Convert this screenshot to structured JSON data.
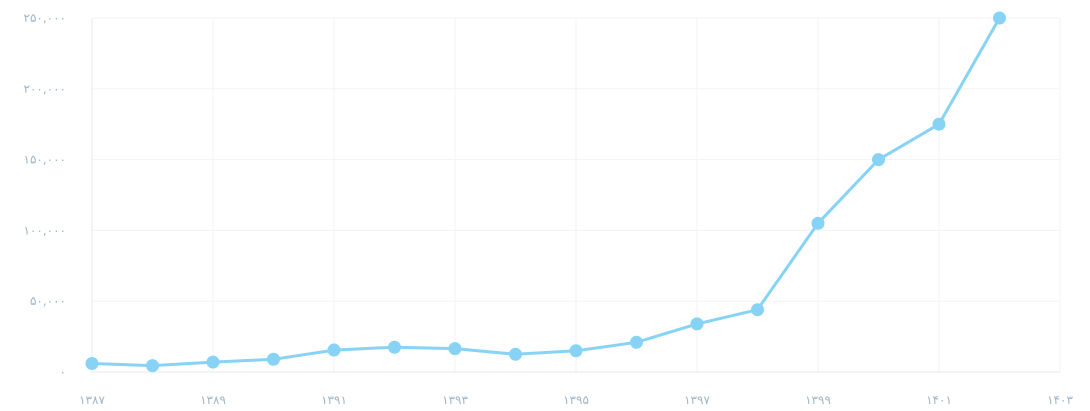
{
  "chart_data": {
    "type": "line",
    "title": "",
    "xlabel": "",
    "ylabel": "",
    "grid": true,
    "legend": "none",
    "x": [
      1387,
      1388,
      1389,
      1390,
      1391,
      1392,
      1393,
      1394,
      1395,
      1396,
      1397,
      1398,
      1399,
      1400,
      1401,
      1402
    ],
    "xlim": [
      1387,
      1403
    ],
    "ylim": [
      0,
      250000
    ],
    "x_ticks": [
      "۱۳۸۷",
      "۱۳۸۹",
      "۱۳۹۱",
      "۱۳۹۳",
      "۱۳۹۵",
      "۱۳۹۷",
      "۱۳۹۹",
      "۱۴۰۱",
      "۱۴۰۳"
    ],
    "y_ticks": [
      "۰",
      "۵۰,۰۰۰",
      "۱۰۰,۰۰۰",
      "۱۵۰,۰۰۰",
      "۲۰۰,۰۰۰",
      "۲۵۰,۰۰۰"
    ],
    "series": [
      {
        "color": "#86d3f6",
        "values": [
          6000,
          4500,
          7000,
          9000,
          15500,
          17500,
          16500,
          12500,
          15000,
          21000,
          34000,
          44000,
          105000,
          150000,
          175000,
          250000
        ]
      }
    ]
  }
}
